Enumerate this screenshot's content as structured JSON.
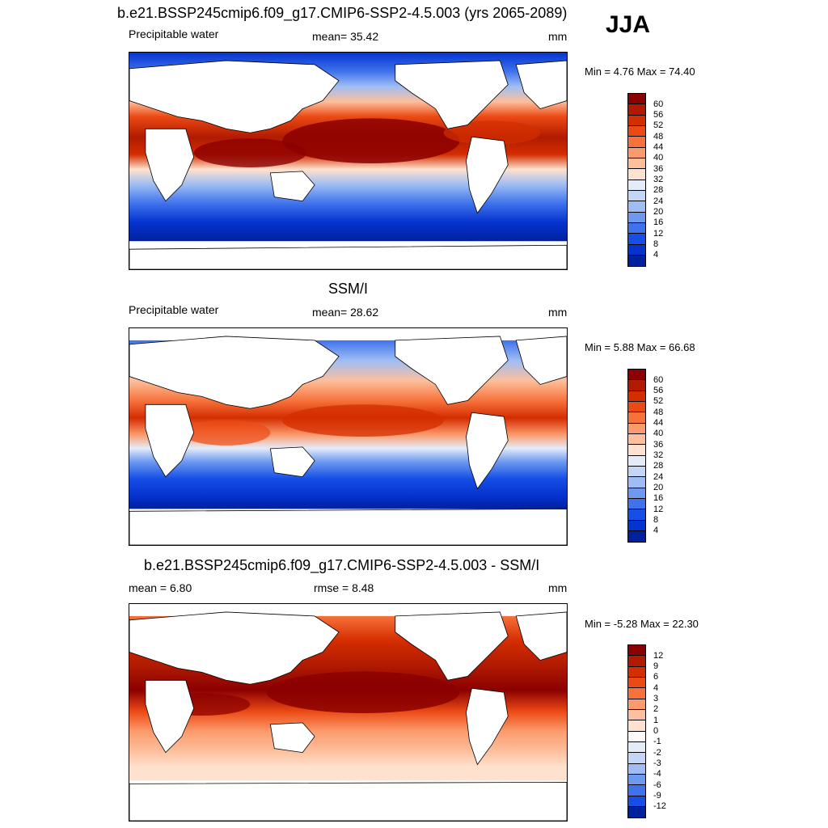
{
  "season": "JJA",
  "panels": [
    {
      "title": "b.e21.BSSP245cmip6.f09_g17.CMIP6-SSP2-4.5.003 (yrs 2065-2089)",
      "left_label": "Precipitable water",
      "center_label": "mean=  35.42",
      "units": "mm",
      "minmax": "Min =   4.76 Max =  74.40"
    },
    {
      "title": "SSM/I",
      "left_label": "Precipitable water",
      "center_label": "mean=  28.62",
      "units": "mm",
      "minmax": "Min =   5.88 Max =  66.68"
    },
    {
      "title": "b.e21.BSSP245cmip6.f09_g17.CMIP6-SSP2-4.5.003 - SSM/I",
      "left_label": "mean =   6.80",
      "center_label": "rmse =   8.48",
      "units": "mm",
      "minmax": "Min =  -5.28 Max =  22.30"
    }
  ],
  "colorbar_abs": {
    "labels": [
      "60",
      "56",
      "52",
      "48",
      "44",
      "40",
      "36",
      "32",
      "28",
      "24",
      "20",
      "16",
      "12",
      "8",
      "4"
    ],
    "colors": [
      "#8b0000",
      "#b11a00",
      "#d42d00",
      "#ec4a14",
      "#f7713a",
      "#fb9a6c",
      "#fdbf9c",
      "#fee2cf",
      "#e4ecfa",
      "#c4d6f7",
      "#9ebdf4",
      "#6d9af0",
      "#3f72ec",
      "#174fe6",
      "#0533cf",
      "#00219e"
    ]
  },
  "colorbar_diff": {
    "labels": [
      "12",
      "9",
      "6",
      "4",
      "3",
      "2",
      "1",
      "0",
      "-1",
      "-2",
      "-3",
      "-4",
      "-6",
      "-9",
      "-12"
    ],
    "colors": [
      "#8b0000",
      "#b11a00",
      "#d42d00",
      "#ec4a14",
      "#f7713a",
      "#fb9a6c",
      "#fdbf9c",
      "#fee2cf",
      "#fffaf7",
      "#e4ecfa",
      "#c4d6f7",
      "#9ebdf4",
      "#6d9af0",
      "#3f72ec",
      "#174fe6",
      "#00219e"
    ]
  }
}
